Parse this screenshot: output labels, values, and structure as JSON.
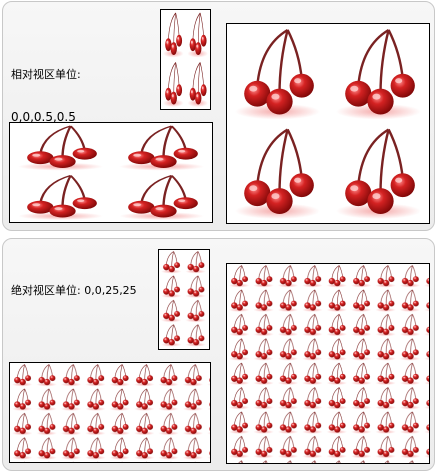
{
  "top_section": {
    "caption_line1": "相对视区单位:",
    "caption_line2": "0,0,0.5,0.5",
    "tile_icon": "cherry-icon"
  },
  "bottom_section": {
    "caption": "绝对视区单位: 0,0,25,25",
    "tile_icon": "cherry-icon"
  },
  "colors": {
    "panel_bg": "#efefef",
    "panel_border": "#c8c8c8",
    "box_border": "#000000",
    "cherry_red": "#b81818",
    "stem": "#7a2222",
    "shadow": "#f0b8b8"
  }
}
